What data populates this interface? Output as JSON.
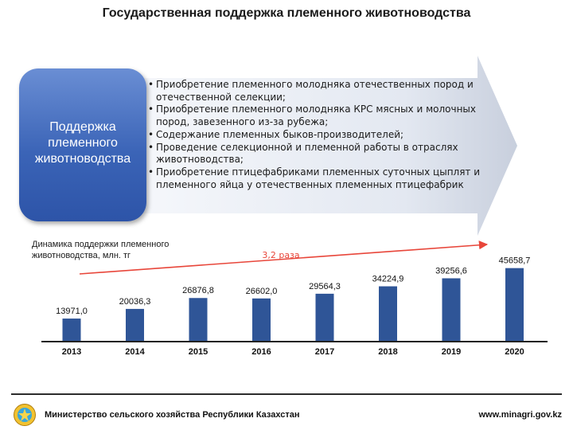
{
  "page": {
    "title": "Государственная поддержка племенного животноводства"
  },
  "support_box": {
    "label": "Поддержка\nплеменного\nживотноводства"
  },
  "bullets": [
    "Приобретение племенного молодняка отечественных пород и отечественной селекции;",
    "Приобретение племенного молодняка КРС  мясных и молочных пород, завезенного из-за рубежа;",
    "Содержание племенных быков-производителей;",
    "Проведение селекционной и племенной работы в отраслях животноводства;",
    "Приобретение птицефабриками племенных суточных цыплят и племенного яйца у отечественных племенных птицефабрик"
  ],
  "chart_data": {
    "type": "bar",
    "title": "Динамика поддержки племенного\nживотноводства, млн. тг",
    "categories": [
      "2013",
      "2014",
      "2015",
      "2016",
      "2017",
      "2018",
      "2019",
      "2020"
    ],
    "values": [
      13971.0,
      20036.3,
      26876.8,
      26602.0,
      29564.3,
      34224.9,
      39256.6,
      45658.7
    ],
    "value_labels": [
      "13971,0",
      "20036,3",
      "26876,8",
      "26602,0",
      "29564,3",
      "34224,9",
      "39256,6",
      "45658,7"
    ],
    "annotation": "3,2 раза",
    "ylim": [
      0,
      48000
    ],
    "grid": false,
    "bar_color": "#2f5597",
    "trend_color": "#e8463a",
    "annotation_color": "#e8463a"
  },
  "footer": {
    "ministry": "Министерство сельского хозяйства Республики Казахстан",
    "site": "www.minagri.gov.kz"
  },
  "colors": {
    "box_blue": "#3b64b7",
    "arrow_light": "#eef1f8",
    "arrow_dark": "#c7cedd"
  },
  "icons": {
    "emblem": "state-emblem-icon"
  }
}
